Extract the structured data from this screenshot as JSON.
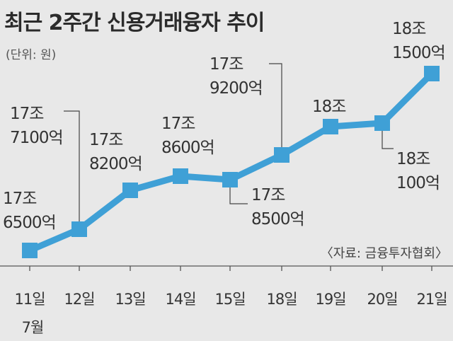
{
  "chart_data": {
    "type": "line",
    "title": "최근 2주간 신용거래융자 추이",
    "unit_label": "(단위: 원)",
    "source": "〈자료: 금융투자협회〉",
    "x_month": "7월",
    "categories": [
      "11일",
      "12일",
      "13일",
      "14일",
      "15일",
      "18일",
      "19일",
      "20일",
      "21일"
    ],
    "values": [
      17.65,
      17.71,
      17.82,
      17.86,
      17.85,
      17.92,
      18.0,
      18.01,
      18.15
    ],
    "value_unit": "조",
    "data_labels": [
      [
        "17조",
        "6500억"
      ],
      [
        "17조",
        "7100억"
      ],
      [
        "17조",
        "8200억"
      ],
      [
        "17조",
        "8600억"
      ],
      [
        "17조",
        "8500억"
      ],
      [
        "17조",
        "9200억"
      ],
      [
        "18조"
      ],
      [
        "18조",
        "100억"
      ],
      [
        "18조",
        "1500억"
      ]
    ],
    "ylim": [
      17.6,
      18.2
    ],
    "line_color": "#3fa0d6",
    "grid": false
  }
}
